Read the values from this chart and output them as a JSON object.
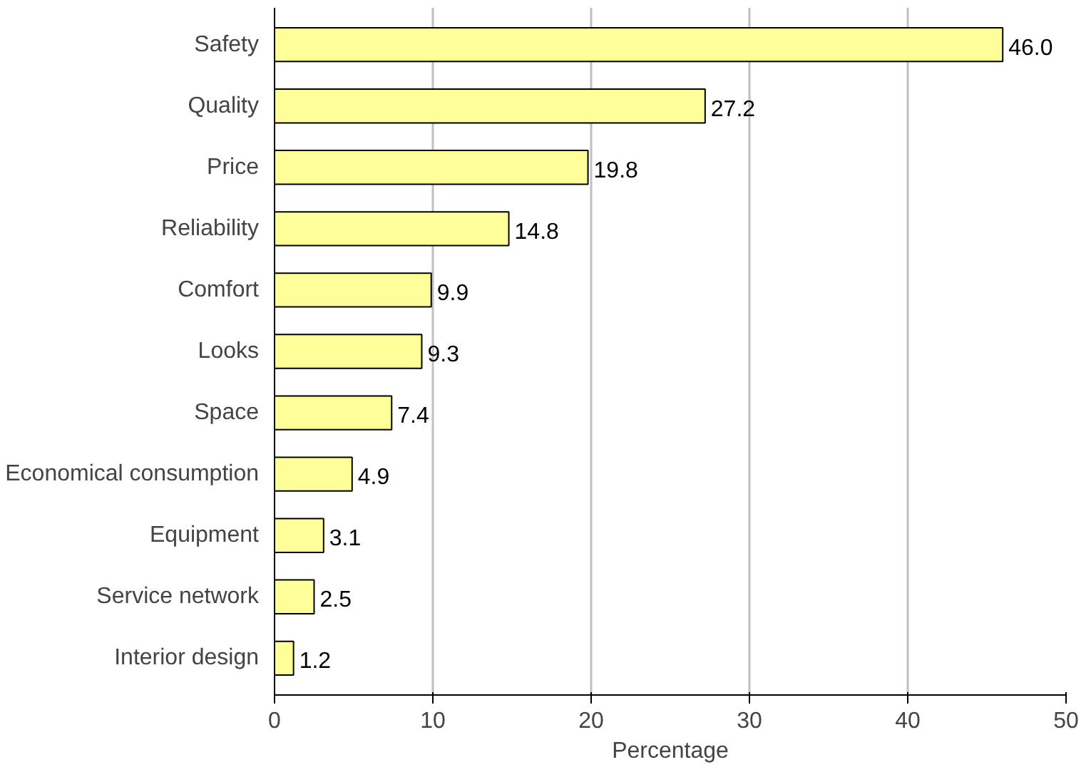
{
  "chart_data": {
    "type": "bar",
    "orientation": "horizontal",
    "xlabel": "Percentage",
    "categories": [
      "Safety",
      "Quality",
      "Price",
      "Reliability",
      "Comfort",
      "Looks",
      "Space",
      "Economical consumption",
      "Equipment",
      "Service network",
      "Interior design"
    ],
    "values": [
      46.0,
      27.2,
      19.8,
      14.8,
      9.9,
      9.3,
      7.4,
      4.9,
      3.1,
      2.5,
      1.2
    ],
    "value_labels": [
      "46.0",
      "27.2",
      "19.8",
      "14.8",
      "9.9",
      "9.3",
      "7.4",
      "4.9",
      "3.1",
      "2.5",
      "1.2"
    ],
    "color": "#ffff99",
    "xlim": [
      0,
      50
    ],
    "xticks": [
      0,
      10,
      20,
      30,
      40,
      50
    ],
    "grid": "x"
  }
}
